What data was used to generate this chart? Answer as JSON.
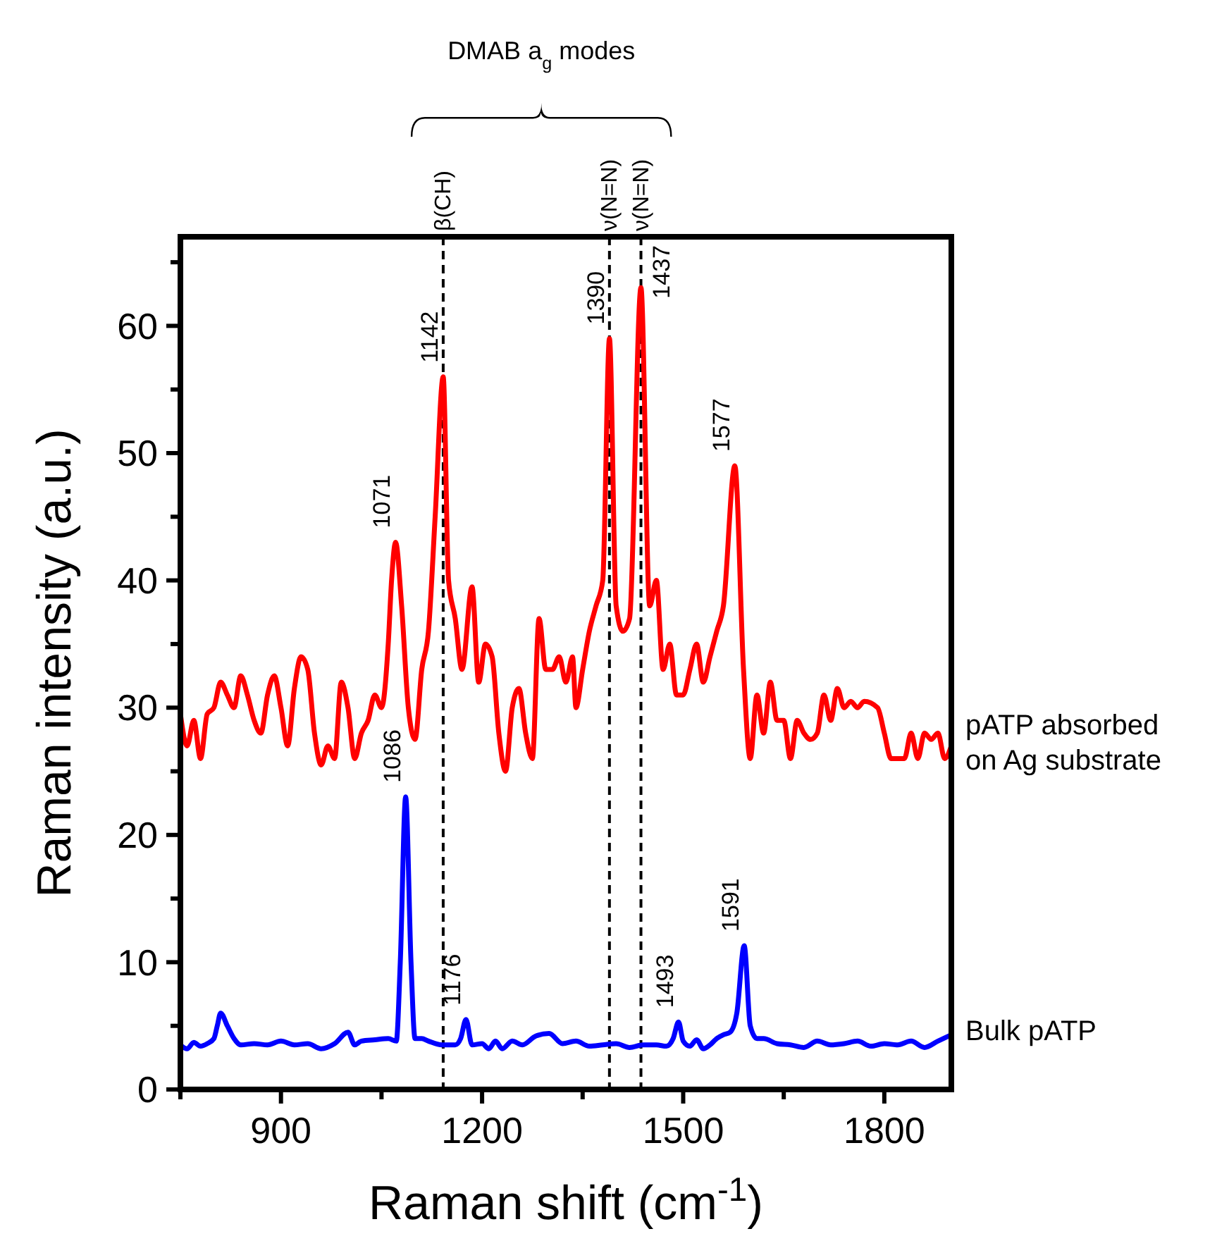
{
  "chart_data": {
    "type": "line",
    "xlabel": "Raman shift (cm$^{-1}$)",
    "ylabel": "Raman intensity (a.u.)",
    "xlim": [
      750,
      1900
    ],
    "xticks": [
      {
        "value": 750,
        "label": null
      },
      900,
      {
        "value": 1050,
        "label": null
      },
      1200,
      {
        "value": 1350,
        "label": null
      },
      1500,
      {
        "value": 1650,
        "label": null
      },
      1800
    ],
    "ylim": [
      0,
      67
    ],
    "yticks": [
      0,
      {
        "value": 5,
        "label": null
      },
      10,
      {
        "value": 15,
        "label": null
      },
      20,
      {
        "value": 25,
        "label": null
      },
      30,
      {
        "value": 35,
        "label": null
      },
      40,
      {
        "value": 45,
        "label": null
      },
      50,
      {
        "value": 55,
        "label": null
      },
      60,
      {
        "value": 65,
        "label": null
      }
    ],
    "grid": false,
    "marker": "none",
    "line_style": "solid",
    "series": [
      {
        "name": "pATP absorbed on Ag substrate",
        "color": "#ff0000",
        "x": [
          750,
          760,
          770,
          780,
          790,
          800,
          810,
          820,
          830,
          840,
          850,
          860,
          870,
          880,
          890,
          900,
          910,
          920,
          930,
          940,
          950,
          960,
          970,
          980,
          990,
          1000,
          1010,
          1020,
          1030,
          1040,
          1050,
          1060,
          1065,
          1071,
          1080,
          1090,
          1100,
          1110,
          1120,
          1130,
          1142,
          1150,
          1160,
          1170,
          1185,
          1195,
          1205,
          1215,
          1225,
          1235,
          1245,
          1255,
          1265,
          1275,
          1285,
          1295,
          1305,
          1315,
          1325,
          1335,
          1340,
          1350,
          1360,
          1370,
          1380,
          1390,
          1400,
          1410,
          1420,
          1437,
          1450,
          1460,
          1470,
          1480,
          1490,
          1500,
          1510,
          1520,
          1530,
          1540,
          1550,
          1560,
          1577,
          1590,
          1600,
          1610,
          1620,
          1630,
          1640,
          1650,
          1660,
          1670,
          1680,
          1690,
          1700,
          1710,
          1720,
          1730,
          1740,
          1750,
          1760,
          1770,
          1790,
          1800,
          1810,
          1820,
          1830,
          1840,
          1850,
          1860,
          1870,
          1880,
          1890,
          1900
        ],
        "values": [
          29.5,
          27,
          29,
          26,
          29.5,
          30,
          32,
          31,
          30,
          32.5,
          31,
          29,
          28,
          31,
          32.5,
          30,
          27,
          31.5,
          34,
          33,
          28,
          25.5,
          27,
          26,
          32,
          30,
          26,
          28,
          29,
          31,
          30,
          35,
          40,
          43,
          38,
          30,
          27.5,
          33,
          36,
          45,
          56,
          40,
          37,
          33,
          39.5,
          32,
          35,
          34,
          28,
          25,
          30,
          31.5,
          28,
          26,
          37,
          33,
          33,
          34,
          32,
          34,
          30,
          33,
          36,
          38,
          40,
          59,
          38,
          36,
          37,
          63,
          38,
          40,
          33,
          35,
          31,
          31,
          33,
          35,
          32,
          34,
          36,
          38,
          49,
          33,
          26,
          31,
          28,
          32,
          29,
          29,
          26,
          29,
          28,
          27.5,
          28,
          31,
          29,
          31.5,
          30,
          30.5,
          30,
          30.5,
          30,
          28,
          26,
          26,
          26,
          28,
          26,
          28,
          27.5,
          28,
          26,
          27
        ]
      },
      {
        "name": "Bulk pATP",
        "color": "#0000ff",
        "x": [
          750,
          760,
          770,
          780,
          790,
          800,
          805,
          810,
          820,
          830,
          840,
          860,
          880,
          900,
          920,
          940,
          960,
          980,
          1000,
          1010,
          1020,
          1040,
          1060,
          1072,
          1078,
          1086,
          1094,
          1100,
          1110,
          1120,
          1140,
          1160,
          1168,
          1176,
          1185,
          1200,
          1210,
          1220,
          1230,
          1245,
          1260,
          1280,
          1300,
          1320,
          1340,
          1360,
          1380,
          1400,
          1420,
          1440,
          1460,
          1475,
          1485,
          1493,
          1500,
          1510,
          1520,
          1530,
          1540,
          1550,
          1560,
          1570,
          1580,
          1591,
          1600,
          1610,
          1620,
          1640,
          1660,
          1680,
          1700,
          1720,
          1740,
          1760,
          1780,
          1800,
          1820,
          1840,
          1860,
          1880,
          1900
        ],
        "values": [
          3.5,
          3.2,
          3.7,
          3.4,
          3.6,
          4,
          5,
          6,
          5,
          4,
          3.5,
          3.6,
          3.5,
          3.8,
          3.5,
          3.6,
          3.2,
          3.6,
          4.5,
          3.5,
          3.8,
          3.9,
          4,
          3.8,
          10,
          23,
          10,
          4,
          4,
          3.8,
          3.5,
          3.5,
          4,
          5.5,
          3.5,
          3.6,
          3.2,
          3.8,
          3.2,
          3.8,
          3.5,
          4.2,
          4.4,
          3.6,
          3.8,
          3.4,
          3.5,
          3.6,
          3.3,
          3.5,
          3.5,
          3.4,
          4,
          5.3,
          3.8,
          3.4,
          3.9,
          3.2,
          3.5,
          4,
          4.3,
          4.5,
          6,
          11.3,
          5,
          4,
          4,
          3.6,
          3.5,
          3.3,
          3.8,
          3.5,
          3.6,
          3.8,
          3.4,
          3.6,
          3.5,
          3.8,
          3.3,
          3.8,
          4.3
        ]
      }
    ],
    "ref_lines": [
      {
        "axis": "x",
        "value": 1142,
        "label": "β(CH)",
        "line_style": "dashed",
        "color": "#000000"
      },
      {
        "axis": "x",
        "value": 1390,
        "label": "ν(N=N)",
        "line_style": "dashed",
        "color": "#000000"
      },
      {
        "axis": "x",
        "value": 1437,
        "label": "ν(N=N)",
        "line_style": "dashed",
        "color": "#000000"
      }
    ],
    "annotations": [
      "DMAB a$_{g}$ modes",
      {
        "text": "1071",
        "x": 1071,
        "y": 43
      },
      {
        "text": "1142",
        "x": 1142,
        "y": 56
      },
      {
        "text": "1390",
        "x": 1390,
        "y": 59
      },
      {
        "text": "1437",
        "x": 1437,
        "y": 63
      },
      {
        "text": "1577",
        "x": 1577,
        "y": 49
      },
      {
        "text": "1086",
        "x": 1086,
        "y": 23
      },
      {
        "text": "1176",
        "x": 1176,
        "y": 5.5
      },
      {
        "text": "1493",
        "x": 1493,
        "y": 5.3
      },
      {
        "text": "1591",
        "x": 1591,
        "y": 11.3
      }
    ]
  }
}
